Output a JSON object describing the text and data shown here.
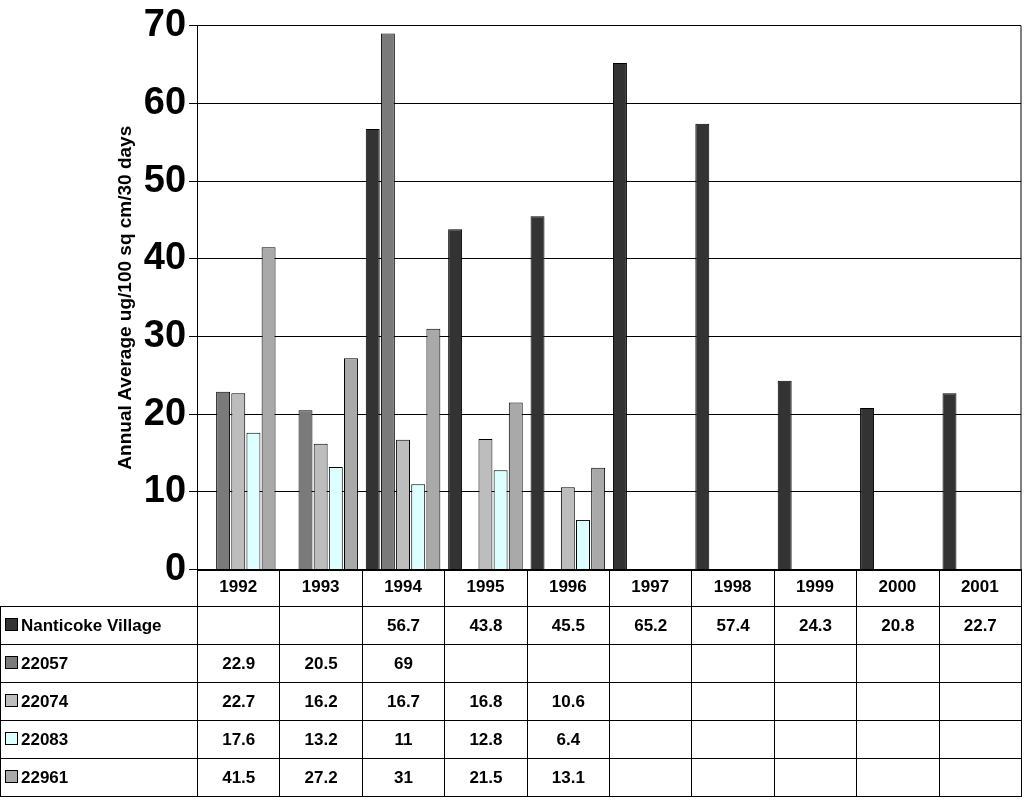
{
  "chart_data": {
    "type": "bar",
    "ylabel": "Annual Average ug/100 sq cm/30 days",
    "categories": [
      "1992",
      "1993",
      "1994",
      "1995",
      "1996",
      "1997",
      "1998",
      "1999",
      "2000",
      "2001"
    ],
    "series": [
      {
        "name": "Nanticoke Village",
        "color": "#333333",
        "values": [
          null,
          null,
          56.7,
          43.8,
          45.5,
          65.2,
          57.4,
          24.3,
          20.8,
          22.7
        ]
      },
      {
        "name": "22057",
        "color": "#7a7a7a",
        "values": [
          22.9,
          20.5,
          69,
          null,
          null,
          null,
          null,
          null,
          null,
          null
        ]
      },
      {
        "name": "22074",
        "color": "#bdbdbd",
        "values": [
          22.7,
          16.2,
          16.7,
          16.8,
          10.6,
          null,
          null,
          null,
          null,
          null
        ]
      },
      {
        "name": "22083",
        "color": "#ddffff",
        "values": [
          17.6,
          13.2,
          11,
          12.8,
          6.4,
          null,
          null,
          null,
          null,
          null
        ]
      },
      {
        "name": "22961",
        "color": "#a9a9a9",
        "values": [
          41.5,
          27.2,
          31,
          21.5,
          13.1,
          null,
          null,
          null,
          null,
          null
        ]
      }
    ],
    "ylim": [
      0,
      70
    ],
    "yticks": [
      0,
      10,
      20,
      30,
      40,
      50,
      60,
      70
    ],
    "grid": "y",
    "legend": "bottom",
    "data_labels": true
  }
}
